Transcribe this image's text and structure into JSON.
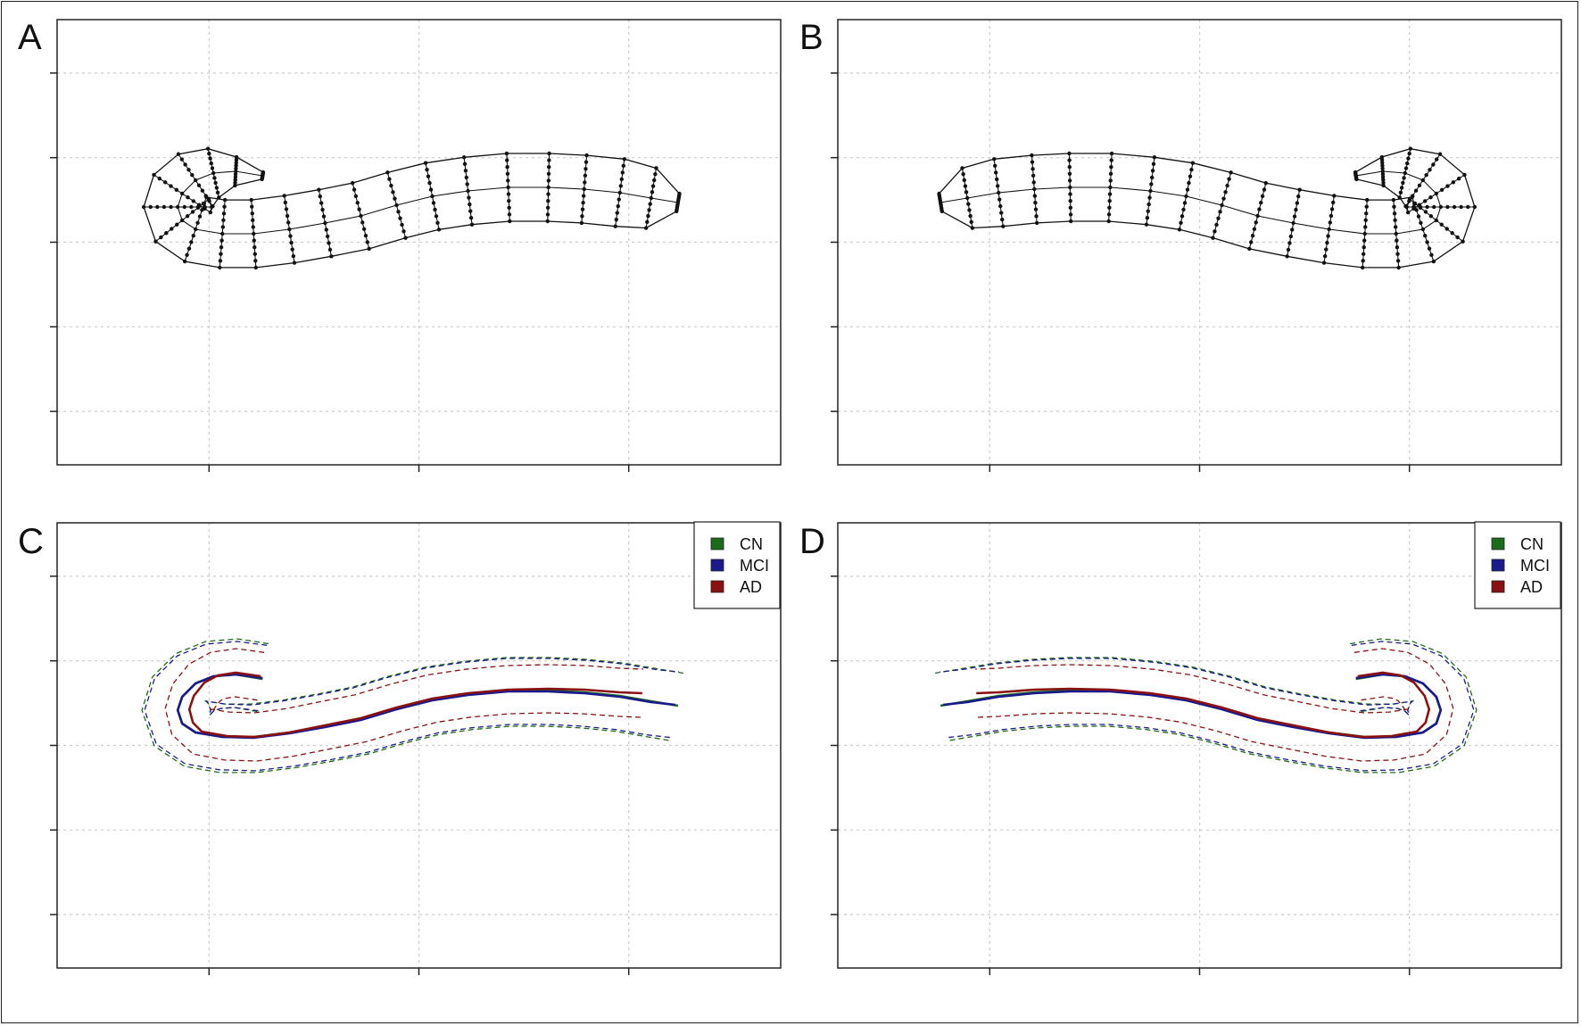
{
  "figure": {
    "background": "#ffffff"
  },
  "chart_data": [
    {
      "panel": "A",
      "type": "scatter",
      "description": "Parametric mesh of a curved shape: skeleton curve, two boundary curves and transverse point rows",
      "grid": true,
      "tick_labels_shown": false,
      "x_ticks": 3,
      "y_ticks": 5,
      "mesh": {
        "skeleton_x": [
          70,
          40,
          15,
          -5,
          -20,
          -25,
          -20,
          -5,
          25,
          60,
          100,
          140,
          180,
          220,
          260,
          300,
          345,
          390,
          430,
          470,
          505,
          535
        ],
        "skeleton_y": [
          -85,
          -90,
          -88,
          -80,
          -65,
          -50,
          -35,
          -25,
          -20,
          -20,
          -25,
          -32,
          -40,
          -52,
          -62,
          -68,
          -72,
          -72,
          -70,
          -66,
          -60,
          -55
        ],
        "half_widths": [
          4,
          16,
          28,
          35,
          38,
          38,
          38,
          38,
          38,
          38,
          38,
          38,
          38,
          38,
          38,
          38,
          38,
          38,
          38,
          38,
          34,
          10
        ],
        "points_per_row": 11
      }
    },
    {
      "panel": "B",
      "type": "scatter",
      "description": "Mirror image of panel A mesh",
      "grid": true,
      "tick_labels_shown": false,
      "x_ticks": 3,
      "y_ticks": 5,
      "mirror_of": "A"
    },
    {
      "panel": "C",
      "type": "line",
      "grid": true,
      "tick_labels_shown": false,
      "x_ticks": 3,
      "y_ticks": 5,
      "legend_position": "top-right",
      "series": [
        {
          "name": "CN",
          "color": "#1a6b1a",
          "center_x": [
            70,
            40,
            15,
            -5,
            -20,
            -25,
            -20,
            -5,
            25,
            60,
            100,
            140,
            180,
            220,
            260,
            300,
            345,
            390,
            430,
            470,
            505,
            535
          ],
          "center_y": [
            -85,
            -90,
            -88,
            -80,
            -65,
            -50,
            -35,
            -25,
            -20,
            -20,
            -25,
            -32,
            -40,
            -52,
            -62,
            -68,
            -72,
            -72,
            -70,
            -66,
            -60,
            -55
          ],
          "band_outer": 40,
          "band_inner": 37
        },
        {
          "name": "MCI",
          "color": "#1a1a8c",
          "center_x": [
            70,
            40,
            15,
            -5,
            -20,
            -25,
            -20,
            -5,
            25,
            60,
            100,
            140,
            180,
            220,
            260,
            300,
            345,
            390,
            430,
            470,
            505,
            532
          ],
          "center_y": [
            -86,
            -90,
            -88,
            -80,
            -65,
            -50,
            -35,
            -25,
            -20,
            -19,
            -24,
            -31,
            -39,
            -51,
            -61,
            -67,
            -71,
            -71,
            -69,
            -65,
            -59,
            -56
          ],
          "band_outer": 37,
          "band_inner": 37
        },
        {
          "name": "AD",
          "color": "#8b1111",
          "center_x": [
            68,
            40,
            20,
            5,
            -7,
            -12,
            -8,
            2,
            30,
            62,
            100,
            140,
            180,
            220,
            260,
            300,
            345,
            390,
            430,
            470,
            495
          ],
          "center_y": [
            -88,
            -92,
            -89,
            -81,
            -66,
            -51,
            -36,
            -26,
            -21,
            -20,
            -25,
            -33,
            -41,
            -53,
            -63,
            -69,
            -73,
            -74,
            -73,
            -70,
            -69
          ],
          "band_outer": 27,
          "band_inner": 27
        }
      ]
    },
    {
      "panel": "D",
      "type": "line",
      "grid": true,
      "tick_labels_shown": false,
      "x_ticks": 3,
      "y_ticks": 5,
      "legend_position": "top-right",
      "mirror_of": "C"
    }
  ],
  "panels": [
    {
      "letter": "A"
    },
    {
      "letter": "B"
    },
    {
      "letter": "C",
      "legend": [
        {
          "label": "CN",
          "color": "#1a6b1a"
        },
        {
          "label": "MCI",
          "color": "#1a1a8c"
        },
        {
          "label": "AD",
          "color": "#8b1111"
        }
      ]
    },
    {
      "letter": "D",
      "legend": [
        {
          "label": "CN",
          "color": "#1a6b1a"
        },
        {
          "label": "MCI",
          "color": "#1a1a8c"
        },
        {
          "label": "AD",
          "color": "#8b1111"
        }
      ]
    }
  ]
}
